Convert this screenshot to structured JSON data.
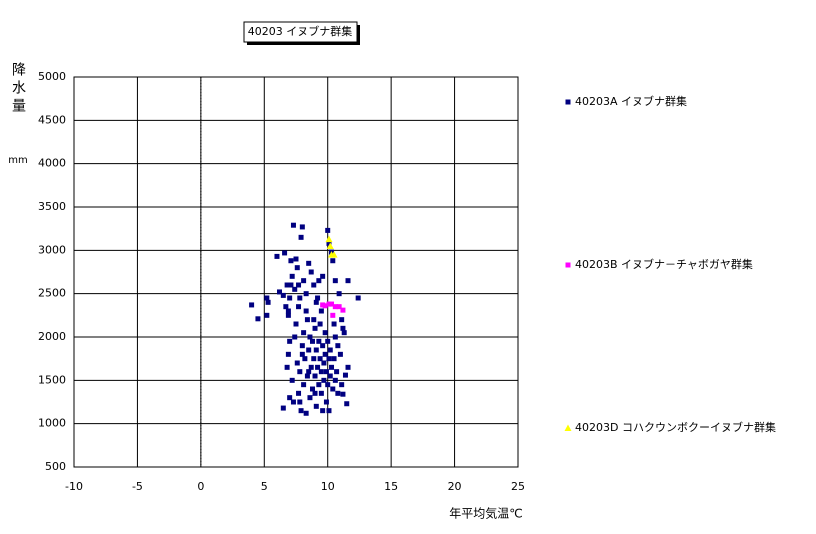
{
  "chart_data": {
    "type": "scatter",
    "title": "40203 イヌブナ群集",
    "x_label": "年平均気温℃",
    "y_label": "降水量",
    "y_unit": "mm",
    "xlim": [
      -10,
      25
    ],
    "xticks": [
      -10,
      -5,
      0,
      5,
      10,
      15,
      20,
      25
    ],
    "ylim": [
      500,
      5000
    ],
    "yticks": [
      500,
      1000,
      1500,
      2000,
      2500,
      3000,
      3500,
      4000,
      4500,
      5000
    ],
    "grid": true,
    "legend": "right",
    "series": [
      {
        "name": "40203A イヌブナ群集",
        "color": "#000080",
        "marker": "square",
        "x": [
          4.0,
          4.5,
          5.2,
          5.3,
          5.2,
          6.0,
          6.2,
          6.5,
          6.6,
          6.7,
          6.8,
          6.9,
          7.0,
          7.1,
          7.2,
          7.3,
          7.4,
          7.5,
          7.6,
          7.7,
          7.8,
          7.9,
          8.0,
          8.1,
          8.3,
          8.5,
          8.7,
          8.9,
          9.1,
          9.3,
          9.5,
          9.6,
          10.0,
          10.1,
          10.3,
          10.4,
          10.6,
          10.9,
          11.1,
          11.2,
          11.3,
          11.6,
          12.4,
          11.5,
          11.2,
          11.1,
          11.4,
          11.6,
          11.0,
          10.8,
          10.6,
          6.8,
          6.9,
          7.0,
          7.2,
          7.3,
          7.5,
          7.6,
          7.7,
          7.8,
          7.9,
          8.0,
          8.1,
          8.1,
          8.2,
          8.3,
          8.4,
          8.4,
          8.5,
          8.6,
          8.6,
          8.7,
          8.8,
          8.8,
          8.9,
          9.0,
          9.0,
          9.1,
          9.1,
          9.2,
          9.3,
          9.3,
          9.4,
          9.4,
          9.5,
          9.5,
          9.6,
          9.7,
          9.7,
          9.8,
          9.8,
          9.9,
          9.9,
          10.0,
          10.0,
          10.1,
          10.1,
          10.2,
          10.2,
          10.3,
          10.4,
          10.5,
          10.6,
          10.7,
          10.8,
          6.5,
          7.0,
          7.8,
          8.0,
          8.5,
          9.0,
          9.6,
          8.3,
          8.9,
          7.4,
          6.9,
          7.1,
          7.7,
          10.5,
          9.2
        ],
        "values": [
          2370,
          2210,
          2450,
          2400,
          2250,
          2930,
          2520,
          2480,
          2970,
          2350,
          2600,
          2300,
          2450,
          2880,
          2700,
          3290,
          2550,
          2900,
          2800,
          2600,
          2450,
          3150,
          3270,
          2650,
          2500,
          2850,
          2750,
          2600,
          2400,
          2650,
          2300,
          2700,
          3230,
          3080,
          2980,
          2880,
          2650,
          2500,
          2200,
          2100,
          2050,
          2650,
          2450,
          1230,
          1340,
          1450,
          1560,
          1650,
          1800,
          1900,
          2000,
          1650,
          1800,
          1950,
          1500,
          1250,
          2150,
          1700,
          1350,
          1600,
          1150,
          1900,
          2050,
          1450,
          1750,
          1120,
          2200,
          1550,
          1850,
          1300,
          2000,
          1650,
          1950,
          1400,
          1750,
          2100,
          1550,
          1850,
          1200,
          1650,
          1950,
          1450,
          2150,
          1750,
          1600,
          1350,
          1900,
          1700,
          1500,
          2050,
          1800,
          1600,
          1250,
          1950,
          1450,
          1750,
          1150,
          1850,
          1550,
          1650,
          1400,
          1750,
          1500,
          1600,
          1350,
          1180,
          1300,
          1250,
          1800,
          1600,
          1350,
          1150,
          2300,
          2200,
          2000,
          2250,
          2600,
          2350,
          2150,
          2450
        ]
      },
      {
        "name": "40203B イヌブナ－チャボガヤ群集",
        "color": "#ff00ff",
        "marker": "square",
        "x": [
          9.8,
          10.1,
          10.3,
          10.6,
          10.9,
          11.2,
          10.4,
          9.6
        ],
        "values": [
          2360,
          2380,
          2380,
          2350,
          2350,
          2310,
          2250,
          2370
        ]
      },
      {
        "name": "40203D コハクウンボクーイヌブナ群集",
        "color": "#ffff00",
        "marker": "triangle",
        "x": [
          10.2,
          10.1,
          10.3,
          10.5
        ],
        "values": [
          3050,
          3130,
          2950,
          2950
        ]
      }
    ]
  }
}
